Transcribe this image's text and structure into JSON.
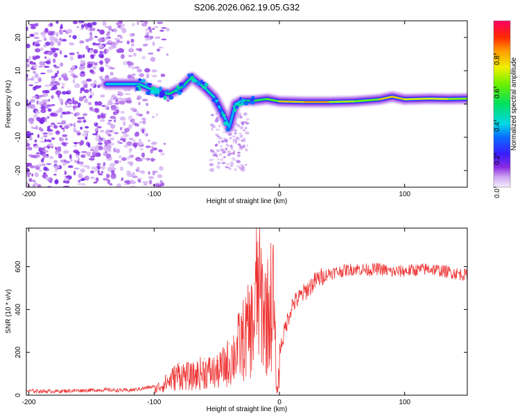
{
  "title": "S206.2026.062.19.05.G32",
  "chart_data": [
    {
      "type": "heatmap",
      "xlabel": "Height of straight line (km)",
      "ylabel": "Frequency (Hz)",
      "xlim": [
        -202,
        150
      ],
      "ylim": [
        -25,
        25
      ],
      "xticks": [
        -200,
        -100,
        0,
        100
      ],
      "yticks": [
        -20,
        -10,
        0,
        10,
        20
      ],
      "colorbar": {
        "label": "Normalized spectral amplitude",
        "range": [
          0,
          1
        ],
        "ticks": [
          "0.0",
          "0.2",
          "0.4",
          "0.6",
          "0.8"
        ],
        "tick_values": [
          0.0,
          0.2,
          0.4,
          0.6,
          0.8
        ]
      },
      "ridge": [
        {
          "x": -138,
          "f": 6,
          "amp": 0.35
        },
        {
          "x": -112,
          "f": 6,
          "amp": 0.4
        },
        {
          "x": -100,
          "f": 4,
          "amp": 0.45
        },
        {
          "x": -88,
          "f": 3,
          "amp": 0.5
        },
        {
          "x": -78,
          "f": 5,
          "amp": 0.5
        },
        {
          "x": -70,
          "f": 8,
          "amp": 0.45
        },
        {
          "x": -60,
          "f": 5,
          "amp": 0.45
        },
        {
          "x": -52,
          "f": 2,
          "amp": 0.4
        },
        {
          "x": -45,
          "f": -3,
          "amp": 0.4
        },
        {
          "x": -40,
          "f": -7,
          "amp": 0.35
        },
        {
          "x": -35,
          "f": 0,
          "amp": 0.35
        },
        {
          "x": -30,
          "f": 1,
          "amp": 0.4
        },
        {
          "x": -20,
          "f": 1,
          "amp": 0.6
        },
        {
          "x": -10,
          "f": 1.5,
          "amp": 0.5
        },
        {
          "x": 0,
          "f": 0.8,
          "amp": 0.7
        },
        {
          "x": 20,
          "f": 0.6,
          "amp": 0.85
        },
        {
          "x": 40,
          "f": 0.6,
          "amp": 0.8
        },
        {
          "x": 60,
          "f": 0.8,
          "amp": 0.55
        },
        {
          "x": 80,
          "f": 1.4,
          "amp": 0.7
        },
        {
          "x": 90,
          "f": 2.2,
          "amp": 0.85
        },
        {
          "x": 100,
          "f": 1.4,
          "amp": 0.7
        },
        {
          "x": 120,
          "f": 1.6,
          "amp": 0.75
        },
        {
          "x": 135,
          "f": 1.5,
          "amp": 0.7
        },
        {
          "x": 150,
          "f": 1.6,
          "amp": 0.6
        }
      ]
    },
    {
      "type": "line",
      "xlabel": "Height of straight line (km)",
      "ylabel": "SNR (10 * v/v)",
      "xlim": [
        -202,
        150
      ],
      "ylim": [
        0,
        780
      ],
      "xticks": [
        -200,
        -100,
        0,
        100
      ],
      "yticks": [
        0,
        200,
        400,
        600
      ],
      "series": [
        {
          "name": "SNR",
          "color": "#ee3333",
          "x": [
            -202,
            -180,
            -160,
            -140,
            -120,
            -100,
            -90,
            -80,
            -70,
            -60,
            -50,
            -40,
            -30,
            -20,
            -18,
            -10,
            -5,
            -2,
            0,
            5,
            10,
            20,
            30,
            40,
            50,
            60,
            70,
            80,
            90,
            100,
            110,
            120,
            130,
            140,
            150
          ],
          "y": [
            20,
            18,
            22,
            25,
            22,
            40,
            90,
            150,
            130,
            170,
            160,
            240,
            380,
            520,
            780,
            560,
            700,
            10,
            200,
            320,
            420,
            480,
            540,
            570,
            580,
            590,
            585,
            590,
            575,
            580,
            585,
            590,
            580,
            570,
            560
          ]
        }
      ]
    }
  ]
}
